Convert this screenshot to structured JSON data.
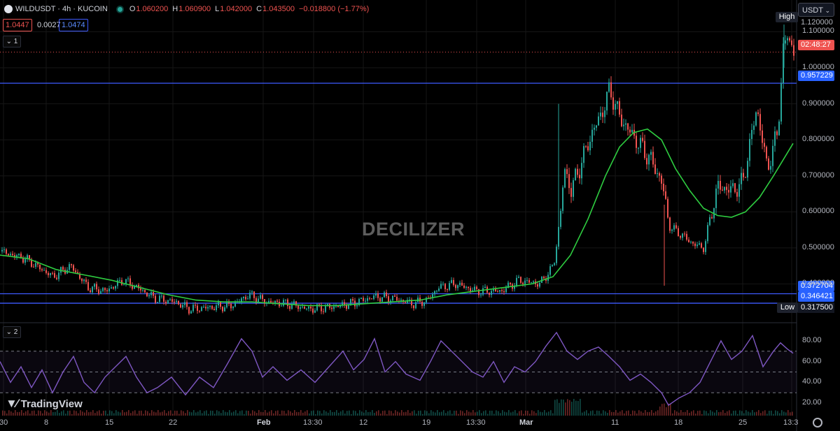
{
  "header": {
    "symbol": "WILDUSDT · 4h · KUCOIN",
    "o_key": "O",
    "o_val": "1.060200",
    "h_key": "H",
    "h_val": "1.060900",
    "l_key": "L",
    "l_val": "1.042000",
    "c_key": "C",
    "c_val": "1.043500",
    "change": "−0.018800 (−1.77%)",
    "bid": "1.0447",
    "spread": "0.0027",
    "ask": "1.0474",
    "pane1_label": "1",
    "pane2_label": "2"
  },
  "currency": "USDT",
  "watermark": "DECILIZER",
  "brand": "TradingView",
  "labels": {
    "high_tag": "High",
    "high_value": "1.120000",
    "countdown": "02:48:27",
    "level1": "0.957229",
    "level2": "0.372704",
    "level3": "0.346421",
    "low_tag": "Low",
    "low_value": "0.317500"
  },
  "colors": {
    "up": "#26a69a",
    "down": "#ef5350",
    "ma": "#2ecc40",
    "rsi": "#7e57c2",
    "level": "#3d5afe"
  },
  "chart_data": [
    {
      "type": "candlestick",
      "title": "WILDUSDT · 4h · KUCOIN",
      "x_ticks": [
        "30",
        "8",
        "15",
        "22",
        "Feb",
        "13:30",
        "12",
        "19",
        "13:30",
        "Mar",
        "11",
        "18",
        "25",
        "13:3"
      ],
      "y_ticks": [
        "1.100000",
        "1.000000",
        "0.900000",
        "0.800000",
        "0.700000",
        "0.600000",
        "0.500000",
        "0.400000"
      ],
      "ylim": [
        0.3,
        1.13
      ],
      "price_path": [
        [
          0,
          0.49
        ],
        [
          35,
          0.47
        ],
        [
          75,
          0.42
        ],
        [
          100,
          0.45
        ],
        [
          125,
          0.39
        ],
        [
          150,
          0.38
        ],
        [
          175,
          0.41
        ],
        [
          195,
          0.39
        ],
        [
          220,
          0.36
        ],
        [
          250,
          0.35
        ],
        [
          270,
          0.33
        ],
        [
          300,
          0.335
        ],
        [
          330,
          0.34
        ],
        [
          355,
          0.37
        ],
        [
          380,
          0.35
        ],
        [
          410,
          0.345
        ],
        [
          440,
          0.33
        ],
        [
          470,
          0.335
        ],
        [
          500,
          0.345
        ],
        [
          535,
          0.365
        ],
        [
          560,
          0.36
        ],
        [
          590,
          0.345
        ],
        [
          610,
          0.355
        ],
        [
          625,
          0.39
        ],
        [
          650,
          0.4
        ],
        [
          680,
          0.38
        ],
        [
          715,
          0.38
        ],
        [
          740,
          0.41
        ],
        [
          770,
          0.4
        ],
        [
          790,
          0.45
        ],
        [
          800,
          0.6
        ],
        [
          805,
          0.72
        ],
        [
          815,
          0.66
        ],
        [
          830,
          0.74
        ],
        [
          845,
          0.82
        ],
        [
          860,
          0.88
        ],
        [
          870,
          0.94
        ],
        [
          885,
          0.86
        ],
        [
          900,
          0.82
        ],
        [
          915,
          0.78
        ],
        [
          930,
          0.74
        ],
        [
          945,
          0.68
        ],
        [
          955,
          0.56
        ],
        [
          970,
          0.54
        ],
        [
          990,
          0.51
        ],
        [
          1005,
          0.5
        ],
        [
          1015,
          0.6
        ],
        [
          1025,
          0.67
        ],
        [
          1045,
          0.66
        ],
        [
          1060,
          0.68
        ],
        [
          1080,
          0.89
        ],
        [
          1095,
          0.72
        ],
        [
          1110,
          0.82
        ],
        [
          1118,
          1.05
        ],
        [
          1124,
          1.09
        ],
        [
          1133,
          1.045
        ]
      ],
      "moving_average": [
        [
          0,
          0.48
        ],
        [
          40,
          0.47
        ],
        [
          80,
          0.44
        ],
        [
          120,
          0.425
        ],
        [
          160,
          0.41
        ],
        [
          200,
          0.39
        ],
        [
          240,
          0.37
        ],
        [
          280,
          0.355
        ],
        [
          320,
          0.35
        ],
        [
          360,
          0.35
        ],
        [
          400,
          0.345
        ],
        [
          440,
          0.34
        ],
        [
          480,
          0.34
        ],
        [
          520,
          0.345
        ],
        [
          560,
          0.35
        ],
        [
          600,
          0.355
        ],
        [
          640,
          0.37
        ],
        [
          680,
          0.38
        ],
        [
          720,
          0.39
        ],
        [
          760,
          0.4
        ],
        [
          790,
          0.42
        ],
        [
          815,
          0.48
        ],
        [
          840,
          0.58
        ],
        [
          865,
          0.7
        ],
        [
          885,
          0.78
        ],
        [
          905,
          0.82
        ],
        [
          925,
          0.83
        ],
        [
          945,
          0.8
        ],
        [
          965,
          0.72
        ],
        [
          985,
          0.66
        ],
        [
          1005,
          0.61
        ],
        [
          1025,
          0.59
        ],
        [
          1045,
          0.585
        ],
        [
          1065,
          0.6
        ],
        [
          1085,
          0.64
        ],
        [
          1105,
          0.7
        ],
        [
          1133,
          0.79
        ]
      ],
      "horizontal_levels": [
        0.957229,
        0.372704,
        0.346421
      ],
      "current_price": 1.0435,
      "high": 1.12,
      "low": 0.3175
    },
    {
      "type": "line",
      "title": "",
      "y_ticks": [
        "80.00",
        "60.00",
        "40.00",
        "20.00"
      ],
      "ylim": [
        10,
        92
      ],
      "bands": [
        70,
        30
      ],
      "middle": 50,
      "rsi_path": [
        [
          0,
          60
        ],
        [
          15,
          40
        ],
        [
          30,
          55
        ],
        [
          45,
          35
        ],
        [
          60,
          52
        ],
        [
          75,
          30
        ],
        [
          90,
          50
        ],
        [
          105,
          65
        ],
        [
          120,
          40
        ],
        [
          135,
          30
        ],
        [
          150,
          45
        ],
        [
          165,
          55
        ],
        [
          180,
          65
        ],
        [
          195,
          45
        ],
        [
          210,
          30
        ],
        [
          225,
          35
        ],
        [
          245,
          45
        ],
        [
          265,
          28
        ],
        [
          285,
          45
        ],
        [
          305,
          35
        ],
        [
          325,
          58
        ],
        [
          345,
          82
        ],
        [
          360,
          70
        ],
        [
          375,
          45
        ],
        [
          390,
          55
        ],
        [
          410,
          42
        ],
        [
          430,
          52
        ],
        [
          450,
          40
        ],
        [
          470,
          55
        ],
        [
          490,
          70
        ],
        [
          505,
          52
        ],
        [
          520,
          62
        ],
        [
          535,
          82
        ],
        [
          550,
          50
        ],
        [
          565,
          60
        ],
        [
          580,
          48
        ],
        [
          600,
          42
        ],
        [
          615,
          60
        ],
        [
          630,
          80
        ],
        [
          645,
          70
        ],
        [
          660,
          60
        ],
        [
          675,
          50
        ],
        [
          690,
          45
        ],
        [
          705,
          60
        ],
        [
          720,
          40
        ],
        [
          735,
          55
        ],
        [
          750,
          50
        ],
        [
          765,
          60
        ],
        [
          780,
          75
        ],
        [
          795,
          88
        ],
        [
          810,
          70
        ],
        [
          825,
          62
        ],
        [
          840,
          70
        ],
        [
          855,
          74
        ],
        [
          870,
          65
        ],
        [
          885,
          55
        ],
        [
          900,
          42
        ],
        [
          915,
          48
        ],
        [
          930,
          40
        ],
        [
          945,
          30
        ],
        [
          955,
          18
        ],
        [
          970,
          25
        ],
        [
          985,
          30
        ],
        [
          1000,
          40
        ],
        [
          1015,
          60
        ],
        [
          1030,
          80
        ],
        [
          1045,
          62
        ],
        [
          1060,
          70
        ],
        [
          1075,
          85
        ],
        [
          1090,
          55
        ],
        [
          1105,
          70
        ],
        [
          1115,
          78
        ],
        [
          1125,
          72
        ],
        [
          1133,
          68
        ]
      ]
    }
  ]
}
